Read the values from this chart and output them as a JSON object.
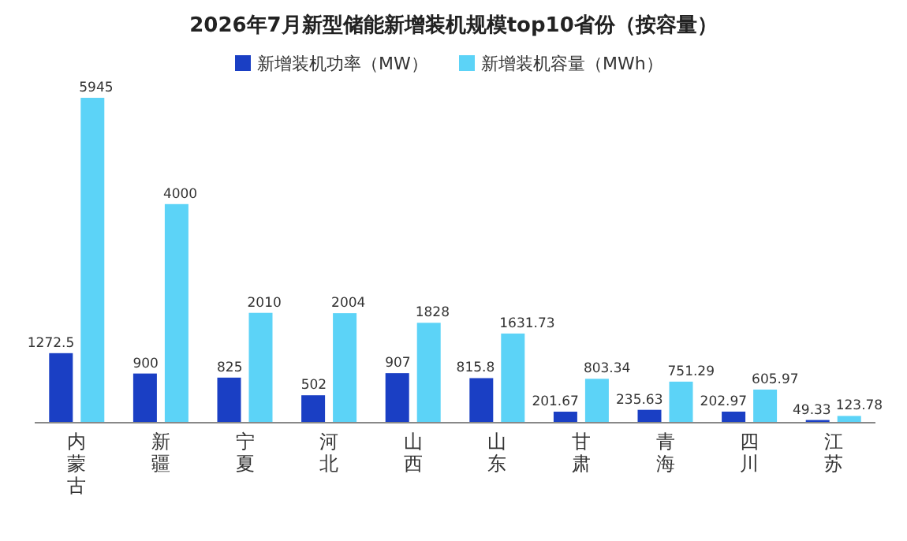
{
  "chart_data": {
    "type": "bar",
    "title": "2026年7月新型储能新增装机规模top10省份（按容量）",
    "categories": [
      "内蒙古",
      "新疆",
      "宁夏",
      "河北",
      "山西",
      "山东",
      "甘肃",
      "青海",
      "四川",
      "江苏"
    ],
    "series": [
      {
        "name": "新增装机功率（MW）",
        "color": "#1a3fc4",
        "values": [
          1272.5,
          900,
          825,
          502,
          907,
          815.8,
          201.67,
          235.63,
          202.97,
          49.33
        ]
      },
      {
        "name": "新增装机容量（MWh）",
        "color": "#5cd3f7",
        "values": [
          5945,
          4000,
          2010,
          2004,
          1828,
          1631.73,
          803.34,
          751.29,
          605.97,
          123.78
        ]
      }
    ],
    "data_labels": true,
    "legend": "top"
  }
}
